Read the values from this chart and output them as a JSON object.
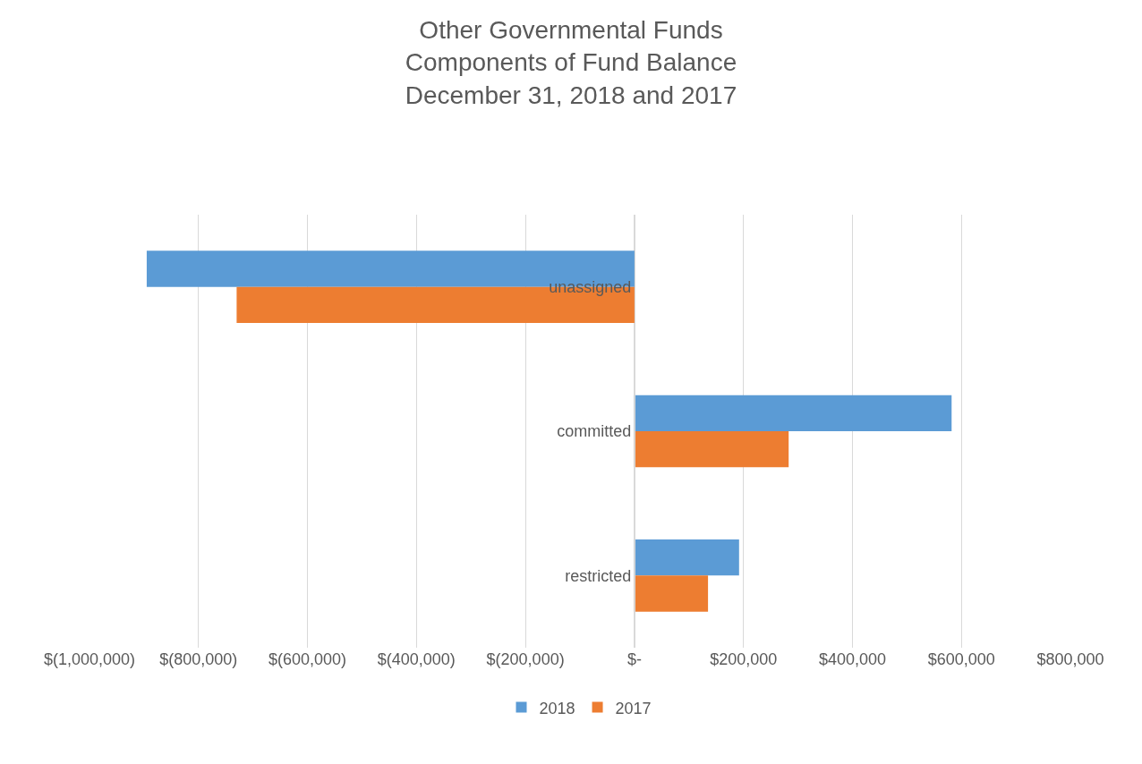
{
  "chart_data": {
    "type": "bar",
    "title": "Other Governmental Funds\nComponents of Fund Balance\nDecember 31, 2018 and 2017",
    "orientation": "horizontal",
    "categories": [
      "unassigned",
      "committed",
      "restricted"
    ],
    "series": [
      {
        "name": "2018",
        "color": "#5b9bd5",
        "values": [
          -895000,
          582000,
          192000
        ]
      },
      {
        "name": "2017",
        "color": "#ed7d31",
        "values": [
          -730000,
          283000,
          135000
        ]
      }
    ],
    "xlim": [
      -1000000,
      800000
    ],
    "xticks": [
      {
        "value": -1000000,
        "label": "$(1,000,000)"
      },
      {
        "value": -800000,
        "label": "$(800,000)"
      },
      {
        "value": -600000,
        "label": "$(600,000)"
      },
      {
        "value": -400000,
        "label": "$(400,000)"
      },
      {
        "value": -200000,
        "label": "$(200,000)"
      },
      {
        "value": 0,
        "label": "$-"
      },
      {
        "value": 200000,
        "label": "$200,000"
      },
      {
        "value": 400000,
        "label": "$400,000"
      },
      {
        "value": 600000,
        "label": "$600,000"
      },
      {
        "value": 800000,
        "label": "$800,000"
      }
    ],
    "grid": "x",
    "legend": "bottom"
  }
}
